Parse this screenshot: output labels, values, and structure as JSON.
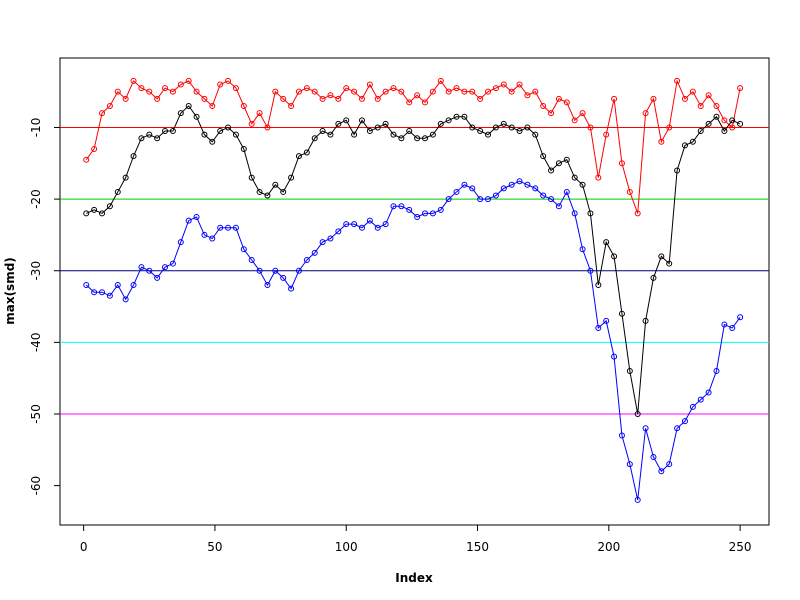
{
  "chart_data": {
    "type": "line",
    "x_label": "Index",
    "y_label": "max(smd)",
    "x": [
      1,
      4,
      7,
      10,
      13,
      16,
      19,
      22,
      25,
      28,
      31,
      34,
      37,
      40,
      43,
      46,
      49,
      52,
      55,
      58,
      61,
      64,
      67,
      70,
      73,
      76,
      79,
      82,
      85,
      88,
      91,
      94,
      97,
      100,
      103,
      106,
      109,
      112,
      115,
      118,
      121,
      124,
      127,
      130,
      133,
      136,
      139,
      142,
      145,
      148,
      151,
      154,
      157,
      160,
      163,
      166,
      169,
      172,
      175,
      178,
      181,
      184,
      187,
      190,
      193,
      196,
      199,
      202,
      205,
      208,
      211,
      214,
      217,
      220,
      223,
      226,
      229,
      232,
      235,
      238,
      241,
      244,
      247,
      250
    ],
    "series": [
      {
        "color": "#ff0000",
        "values": [
          -14.5,
          -13,
          -8,
          -7,
          -5,
          -6,
          -3.5,
          -4.5,
          -5,
          -6,
          -4.5,
          -5,
          -4,
          -3.5,
          -5,
          -6,
          -7,
          -4,
          -3.5,
          -4.5,
          -7,
          -9.5,
          -8,
          -10,
          -5,
          -6,
          -7,
          -5,
          -4.5,
          -5,
          -6,
          -5.5,
          -6,
          -4.5,
          -5,
          -6,
          -4,
          -6,
          -5,
          -4.5,
          -5,
          -6.5,
          -5.5,
          -6.5,
          -5,
          -3.5,
          -5,
          -4.5,
          -5,
          -5,
          -6,
          -5,
          -4.5,
          -4,
          -5,
          -4,
          -5.5,
          -5,
          -7,
          -8,
          -6,
          -6.5,
          -9,
          -8,
          -10,
          -17,
          -11,
          -6,
          -15,
          -19,
          -22,
          -8,
          -6,
          -12,
          -10,
          -3.5,
          -6,
          -5,
          -7,
          -5.5,
          -7,
          -9,
          -10,
          -4.5
        ]
      },
      {
        "color": "#000000",
        "values": [
          -22,
          -21.5,
          -22,
          -21,
          -19,
          -17,
          -14,
          -11.5,
          -11,
          -11.5,
          -10.5,
          -10.5,
          -8,
          -7,
          -8.5,
          -11,
          -12,
          -10.5,
          -10,
          -11,
          -13,
          -17,
          -19,
          -19.5,
          -18,
          -19,
          -17,
          -14,
          -13.5,
          -11.5,
          -10.5,
          -11,
          -9.5,
          -9,
          -11,
          -9,
          -10.5,
          -10,
          -9.5,
          -11,
          -11.5,
          -10.5,
          -11.5,
          -11.5,
          -11,
          -9.5,
          -9,
          -8.5,
          -8.5,
          -10,
          -10.5,
          -11,
          -10,
          -9.5,
          -10,
          -10.5,
          -10,
          -11,
          -14,
          -16,
          -15,
          -14.5,
          -17,
          -18,
          -22,
          -32,
          -26,
          -28,
          -36,
          -44,
          -50,
          -37,
          -31,
          -28,
          -29,
          -16,
          -12.5,
          -12,
          -10.5,
          -9.5,
          -8.5,
          -10.5,
          -9,
          -9.5
        ]
      },
      {
        "color": "#0000ff",
        "values": [
          -32,
          -33,
          -33,
          -33.5,
          -32,
          -34,
          -32,
          -29.5,
          -30,
          -31,
          -29.5,
          -29,
          -26,
          -23,
          -22.5,
          -25,
          -25.5,
          -24,
          -24,
          -24,
          -27,
          -28.5,
          -30,
          -32,
          -30,
          -31,
          -32.5,
          -30,
          -28.5,
          -27.5,
          -26,
          -25.5,
          -24.5,
          -23.5,
          -23.5,
          -24,
          -23,
          -24,
          -23.5,
          -21,
          -21,
          -21.5,
          -22.5,
          -22,
          -22,
          -21.5,
          -20,
          -19,
          -18,
          -18.5,
          -20,
          -20,
          -19.5,
          -18.5,
          -18,
          -17.5,
          -18,
          -18.5,
          -19.5,
          -20,
          -21,
          -19,
          -22,
          -27,
          -30,
          -38,
          -37,
          -42,
          -53,
          -57,
          -62,
          -52,
          -56,
          -58,
          -57,
          -52,
          -51,
          -49,
          -48,
          -47,
          -44,
          -37.5,
          -38,
          -36.5
        ]
      }
    ],
    "hlines": [
      {
        "value": -10,
        "color": "#ff0000"
      },
      {
        "value": -20,
        "color": "#00cd00"
      },
      {
        "value": -30,
        "color": "#000080"
      },
      {
        "value": -40,
        "color": "#00ffff"
      },
      {
        "value": -50,
        "color": "#ff00ff"
      }
    ],
    "xlim": [
      -9,
      261
    ],
    "ylim": [
      -65.5,
      -0.3
    ],
    "xticks": [
      0,
      50,
      100,
      150,
      200,
      250
    ],
    "yticks": [
      -60,
      -50,
      -40,
      -30,
      -20,
      -10
    ]
  }
}
